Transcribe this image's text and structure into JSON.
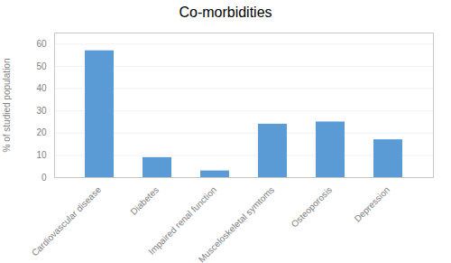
{
  "chart_data": {
    "type": "bar",
    "title": "Co-morbidities",
    "categories": [
      "Cardiovascular disease",
      "Diabetes",
      "Impaired renal function",
      "Musceloskeletal symtoms",
      "Osteoporosis",
      "Depression"
    ],
    "values": [
      57,
      9,
      3,
      24,
      25,
      17
    ],
    "color": "#5b9bd5",
    "ylabel": "% of studied population",
    "ylim": [
      0,
      65
    ],
    "yticks": [
      0,
      10,
      20,
      30,
      40,
      50,
      60
    ],
    "grid": true
  }
}
